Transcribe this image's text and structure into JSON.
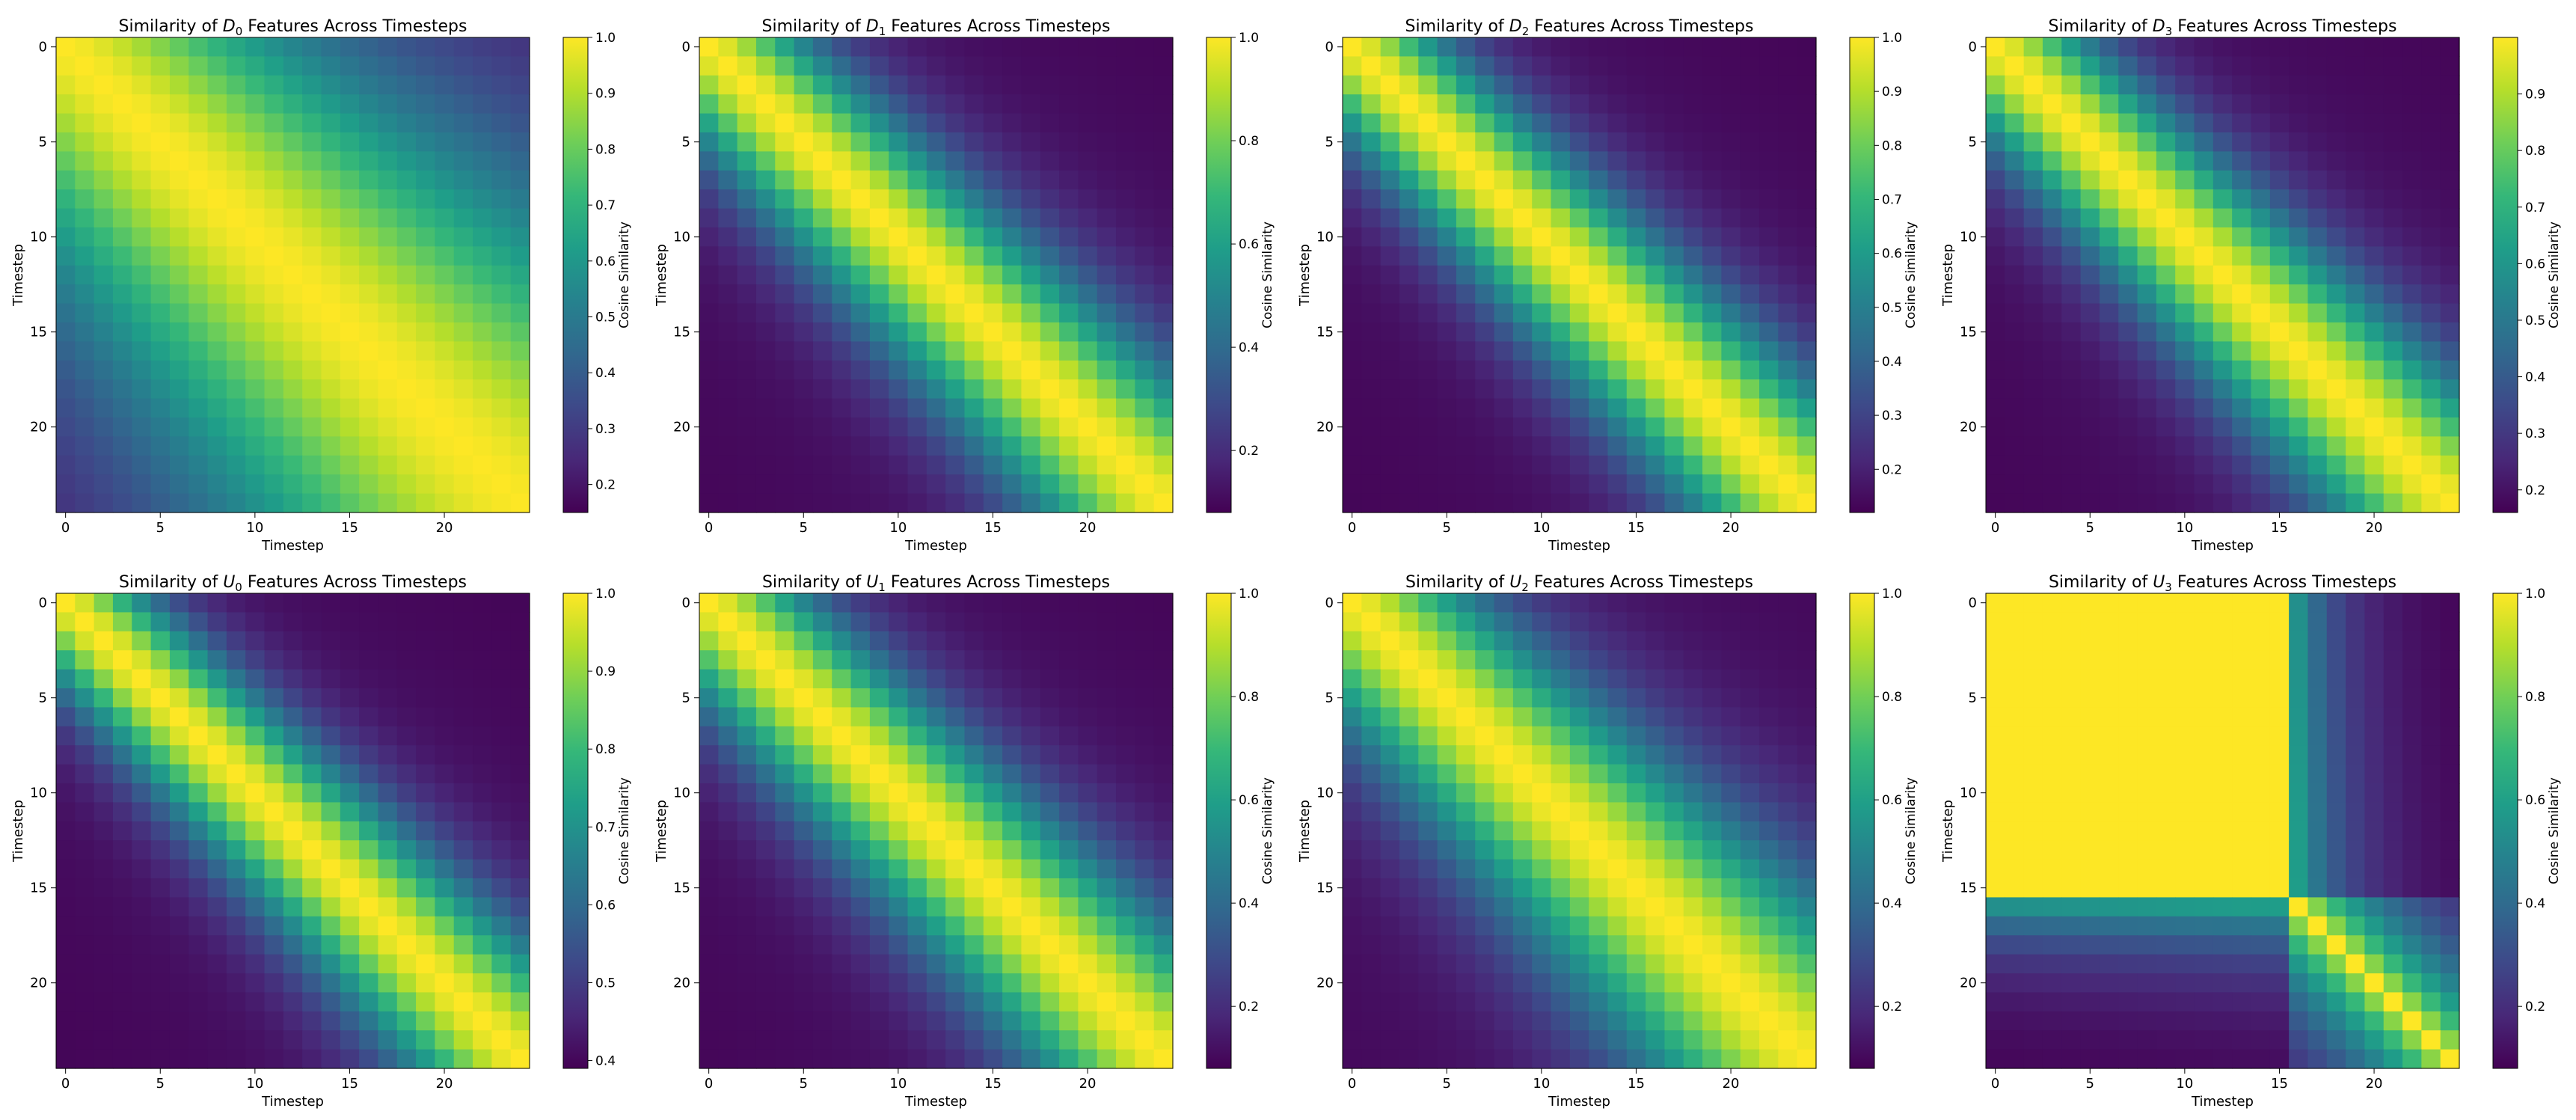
{
  "figure": {
    "colormap": "viridis",
    "colormap_stops": [
      "#440154",
      "#482878",
      "#3e4989",
      "#31688e",
      "#26828e",
      "#1f9e89",
      "#35b779",
      "#6ece58",
      "#b5de2b",
      "#fde725"
    ]
  },
  "chart_data": [
    {
      "type": "heatmap",
      "title_prefix": "Similarity of ",
      "title_var": "D",
      "title_sub": "0",
      "title_suffix": " Features Across Timesteps",
      "xlabel": "Timestep",
      "ylabel": "Timestep",
      "x_ticks": [
        "0",
        "5",
        "10",
        "15",
        "20"
      ],
      "y_ticks": [
        "0",
        "5",
        "10",
        "15",
        "20"
      ],
      "n": 25,
      "vmin": 0.15,
      "vmax": 1.0,
      "colorbar_label": "Cosine Similarity",
      "colorbar_ticks": [
        "0.2",
        "0.3",
        "0.4",
        "0.5",
        "0.6",
        "0.7",
        "0.8",
        "0.9",
        "1.0"
      ],
      "model": {
        "kind": "decay",
        "length_scale": 7.0,
        "growth": 0.35
      }
    },
    {
      "type": "heatmap",
      "title_prefix": "Similarity of ",
      "title_var": "D",
      "title_sub": "1",
      "title_suffix": " Features Across Timesteps",
      "xlabel": "Timestep",
      "ylabel": "Timestep",
      "x_ticks": [
        "0",
        "5",
        "10",
        "15",
        "20"
      ],
      "y_ticks": [
        "0",
        "5",
        "10",
        "15",
        "20"
      ],
      "n": 25,
      "vmin": 0.08,
      "vmax": 1.0,
      "colorbar_label": "Cosine Similarity",
      "colorbar_ticks": [
        "0.2",
        "0.4",
        "0.6",
        "0.8",
        "1.0"
      ],
      "model": {
        "kind": "decay",
        "length_scale": 3.6,
        "growth": 0.2
      }
    },
    {
      "type": "heatmap",
      "title_prefix": "Similarity of ",
      "title_var": "D",
      "title_sub": "2",
      "title_suffix": " Features Across Timesteps",
      "xlabel": "Timestep",
      "ylabel": "Timestep",
      "x_ticks": [
        "0",
        "5",
        "10",
        "15",
        "20"
      ],
      "y_ticks": [
        "0",
        "5",
        "10",
        "15",
        "20"
      ],
      "n": 25,
      "vmin": 0.12,
      "vmax": 1.0,
      "colorbar_label": "Cosine Similarity",
      "colorbar_ticks": [
        "0.2",
        "0.3",
        "0.4",
        "0.5",
        "0.6",
        "0.7",
        "0.8",
        "0.9",
        "1.0"
      ],
      "model": {
        "kind": "decay",
        "length_scale": 3.3,
        "growth": 0.2
      }
    },
    {
      "type": "heatmap",
      "title_prefix": "Similarity of ",
      "title_var": "D",
      "title_sub": "3",
      "title_suffix": " Features Across Timesteps",
      "xlabel": "Timestep",
      "ylabel": "Timestep",
      "x_ticks": [
        "0",
        "5",
        "10",
        "15",
        "20"
      ],
      "y_ticks": [
        "0",
        "5",
        "10",
        "15",
        "20"
      ],
      "n": 25,
      "vmin": 0.16,
      "vmax": 1.0,
      "colorbar_label": "Cosine Similarity",
      "colorbar_ticks": [
        "0.2",
        "0.3",
        "0.4",
        "0.5",
        "0.6",
        "0.7",
        "0.8",
        "0.9"
      ],
      "model": {
        "kind": "decay",
        "length_scale": 3.4,
        "growth": 0.2
      }
    },
    {
      "type": "heatmap",
      "title_prefix": "Similarity of ",
      "title_var": "U",
      "title_sub": "0",
      "title_suffix": " Features Across Timesteps",
      "xlabel": "Timestep",
      "ylabel": "Timestep",
      "x_ticks": [
        "0",
        "5",
        "10",
        "15",
        "20"
      ],
      "y_ticks": [
        "0",
        "5",
        "10",
        "15",
        "20"
      ],
      "n": 25,
      "vmin": 0.39,
      "vmax": 1.0,
      "colorbar_label": "Cosine Similarity",
      "colorbar_ticks": [
        "0.4",
        "0.5",
        "0.6",
        "0.7",
        "0.8",
        "0.9",
        "1.0"
      ],
      "model": {
        "kind": "decay",
        "length_scale": 3.0,
        "growth": 0.25
      }
    },
    {
      "type": "heatmap",
      "title_prefix": "Similarity of ",
      "title_var": "U",
      "title_sub": "1",
      "title_suffix": " Features Across Timesteps",
      "xlabel": "Timestep",
      "ylabel": "Timestep",
      "x_ticks": [
        "0",
        "5",
        "10",
        "15",
        "20"
      ],
      "y_ticks": [
        "0",
        "5",
        "10",
        "15",
        "20"
      ],
      "n": 25,
      "vmin": 0.08,
      "vmax": 1.0,
      "colorbar_label": "Cosine Similarity",
      "colorbar_ticks": [
        "0.2",
        "0.4",
        "0.6",
        "0.8",
        "1.0"
      ],
      "model": {
        "kind": "decay",
        "length_scale": 3.6,
        "growth": 0.2
      }
    },
    {
      "type": "heatmap",
      "title_prefix": "Similarity of ",
      "title_var": "U",
      "title_sub": "2",
      "title_suffix": " Features Across Timesteps",
      "xlabel": "Timestep",
      "ylabel": "Timestep",
      "x_ticks": [
        "0",
        "5",
        "10",
        "15",
        "20"
      ],
      "y_ticks": [
        "0",
        "5",
        "10",
        "15",
        "20"
      ],
      "n": 25,
      "vmin": 0.08,
      "vmax": 1.0,
      "colorbar_label": "Cosine Similarity",
      "colorbar_ticks": [
        "0.2",
        "0.4",
        "0.6",
        "0.8",
        "1.0"
      ],
      "model": {
        "kind": "decay",
        "length_scale": 4.2,
        "growth": 0.25
      }
    },
    {
      "type": "heatmap",
      "title_prefix": "Similarity of ",
      "title_var": "U",
      "title_sub": "3",
      "title_suffix": " Features Across Timesteps",
      "xlabel": "Timestep",
      "ylabel": "Timestep",
      "x_ticks": [
        "0",
        "5",
        "10",
        "15",
        "20"
      ],
      "y_ticks": [
        "0",
        "5",
        "10",
        "15",
        "20"
      ],
      "n": 25,
      "vmin": 0.08,
      "vmax": 1.0,
      "colorbar_label": "Cosine Similarity",
      "colorbar_ticks": [
        "0.2",
        "0.4",
        "0.6",
        "0.8",
        "1.0"
      ],
      "model": {
        "kind": "block",
        "block_end": 15,
        "length_scale": 4.0,
        "growth": 0.3
      }
    }
  ]
}
